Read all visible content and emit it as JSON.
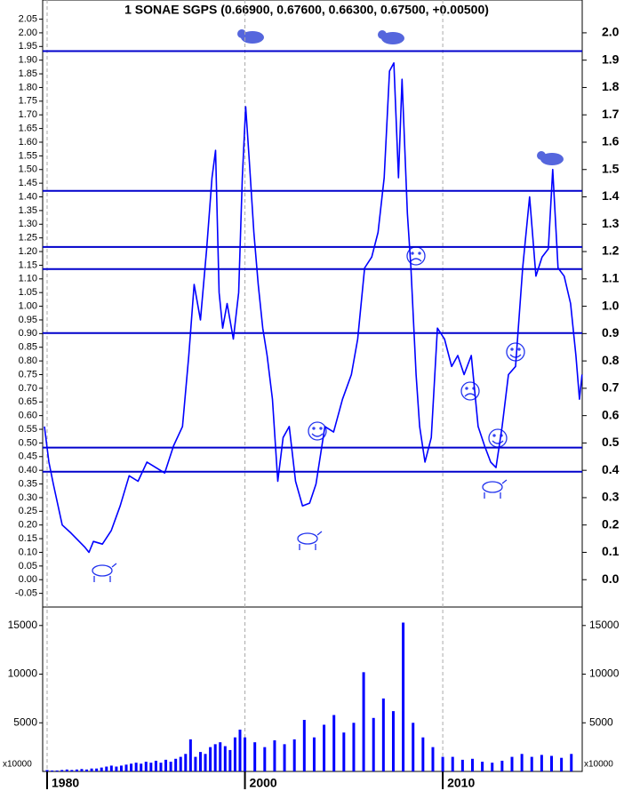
{
  "chart_data": [
    {
      "type": "line",
      "title": "1 SONAE SGPS (0.66900, 0.67600, 0.66300, 0.67500, +0.00500)",
      "xlim": [
        1979.55,
        2017.05
      ],
      "xticks": [
        1980,
        2000,
        2010
      ],
      "ylim": [
        -0.1,
        2.12
      ],
      "yticks": [
        -0.05,
        {
          "value": 0,
          "label": "0.00"
        },
        0.05,
        {
          "value": 0.1,
          "label": "0.10"
        },
        0.15,
        {
          "value": 0.2,
          "label": "0.20"
        },
        0.25,
        {
          "value": 0.3,
          "label": "0.30"
        },
        0.35,
        {
          "value": 0.4,
          "label": "0.40"
        },
        0.45,
        {
          "value": 0.5,
          "label": "0.50"
        },
        0.55,
        {
          "value": 0.6,
          "label": "0.60"
        },
        0.65,
        {
          "value": 0.7,
          "label": "0.70"
        },
        0.75,
        {
          "value": 0.8,
          "label": "0.80"
        },
        0.85,
        {
          "value": 0.9,
          "label": "0.90"
        },
        0.95,
        {
          "value": 1,
          "label": "1.00"
        },
        1.05,
        {
          "value": 1.1,
          "label": "1.10"
        },
        1.15,
        {
          "value": 1.2,
          "label": "1.20"
        },
        1.25,
        {
          "value": 1.3,
          "label": "1.30"
        },
        1.35,
        {
          "value": 1.4,
          "label": "1.40"
        },
        1.45,
        {
          "value": 1.5,
          "label": "1.50"
        },
        1.55,
        {
          "value": 1.6,
          "label": "1.60"
        },
        1.65,
        {
          "value": 1.7,
          "label": "1.70"
        },
        1.75,
        {
          "value": 1.8,
          "label": "1.80"
        },
        1.85,
        {
          "value": 1.9,
          "label": "1.90"
        },
        1.95,
        {
          "value": 2,
          "label": "2.00"
        },
        2.05
      ],
      "y2lim": [
        -0.1,
        2.12
      ],
      "y2ticks": [
        {
          "value": 0,
          "label": "0.0"
        },
        0.1,
        0.2,
        0.3,
        0.4,
        0.5,
        0.6,
        0.7,
        0.8,
        0.9,
        {
          "value": 1,
          "label": "1.0"
        },
        1.1,
        1.2,
        1.3,
        1.4,
        1.5,
        1.6,
        1.7,
        1.8,
        1.9,
        {
          "value": 2,
          "label": "2.0"
        }
      ],
      "hlines": [
        1.933,
        1.422,
        1.217,
        1.136,
        0.902,
        0.483,
        0.395
      ],
      "hline_color": "#0000cc",
      "color": "#0000ff",
      "x": [
        1979.73,
        1980.18,
        1980.63,
        1981.53,
        1982.43,
        1983.78,
        1984.23,
        1984.68,
        1985.59,
        1986.49,
        1987.39,
        1988.29,
        1989.19,
        1990.09,
        1990.99,
        1991.89,
        1992.79,
        1993.69,
        1994.32,
        1994.86,
        1995.5,
        1996.13,
        1996.67,
        1997.03,
        1997.39,
        1997.75,
        1998.2,
        1998.83,
        1999.37,
        1999.73,
        2000.04,
        2000.22,
        2000.45,
        2000.67,
        2000.9,
        2001.12,
        2001.39,
        2001.66,
        2001.93,
        2002.24,
        2002.56,
        2002.91,
        2003.27,
        2003.59,
        2004.04,
        2004.48,
        2004.93,
        2005.38,
        2005.7,
        2006.05,
        2006.41,
        2006.73,
        2007.04,
        2007.31,
        2007.53,
        2007.76,
        2007.94,
        2008.21,
        2008.39,
        2008.65,
        2008.83,
        2009.1,
        2009.42,
        2009.73,
        2010.09,
        2010.45,
        2010.76,
        2011.08,
        2011.44,
        2011.79,
        2012.11,
        2012.42,
        2012.69,
        2013.0,
        2013.32,
        2013.68,
        2014.04,
        2014.39,
        2014.71,
        2015.02,
        2015.34,
        2015.56,
        2015.83,
        2016.14,
        2016.46,
        2016.73,
        2016.91,
        2017.04
      ],
      "values": [
        0.56,
        0.43,
        0.35,
        0.2,
        0.17,
        0.12,
        0.1,
        0.14,
        0.13,
        0.18,
        0.27,
        0.38,
        0.36,
        0.43,
        0.41,
        0.39,
        0.49,
        0.56,
        0.82,
        1.08,
        0.95,
        1.21,
        1.47,
        1.57,
        1.05,
        0.92,
        1.01,
        0.88,
        1.05,
        1.47,
        1.73,
        1.53,
        1.27,
        1.08,
        0.92,
        0.82,
        0.66,
        0.36,
        0.52,
        0.56,
        0.36,
        0.27,
        0.28,
        0.35,
        0.56,
        0.54,
        0.66,
        0.75,
        0.88,
        1.14,
        1.18,
        1.27,
        1.47,
        1.86,
        1.89,
        1.47,
        1.83,
        1.34,
        1.14,
        0.75,
        0.56,
        0.43,
        0.52,
        0.92,
        0.88,
        0.78,
        0.82,
        0.75,
        0.82,
        0.56,
        0.49,
        0.43,
        0.41,
        0.56,
        0.75,
        0.78,
        1.14,
        1.4,
        1.11,
        1.18,
        1.21,
        1.5,
        1.14,
        1.11,
        1.01,
        0.82,
        0.66,
        0.75
      ]
    },
    {
      "type": "bar",
      "multiplier_label": "x10000",
      "xlim": [
        1979.55,
        2017.05
      ],
      "xticks": [
        1980,
        2000,
        2010
      ],
      "ylim": [
        0,
        16900
      ],
      "yticks": [
        5000,
        10000,
        15000
      ],
      "color": "#0000ff",
      "x": [
        1980,
        1980.5,
        1981,
        1981.5,
        1982,
        1982.5,
        1983,
        1983.5,
        1984,
        1984.5,
        1985,
        1985.5,
        1986,
        1986.5,
        1987,
        1987.5,
        1988,
        1988.5,
        1989,
        1989.5,
        1990,
        1990.5,
        1991,
        1991.5,
        1992,
        1992.5,
        1993,
        1993.5,
        1994,
        1994.5,
        1995,
        1995.5,
        1996,
        1996.5,
        1997,
        1997.5,
        1998,
        1998.5,
        1999,
        1999.5,
        2000,
        2000.5,
        2001,
        2001.5,
        2002,
        2002.5,
        2003,
        2003.5,
        2004,
        2004.5,
        2005,
        2005.5,
        2006,
        2006.5,
        2007,
        2007.5,
        2008,
        2008.5,
        2009,
        2009.5,
        2010,
        2010.5,
        2011,
        2011.5,
        2012,
        2012.5,
        2013,
        2013.5,
        2014,
        2014.5,
        2015,
        2015.5,
        2016,
        2016.5
      ],
      "values": [
        150,
        100,
        100,
        150,
        200,
        150,
        200,
        250,
        200,
        300,
        300,
        400,
        500,
        600,
        500,
        600,
        700,
        800,
        900,
        800,
        1000,
        900,
        1100,
        900,
        1200,
        1000,
        1300,
        1500,
        1800,
        3300,
        1500,
        2000,
        1800,
        2500,
        2800,
        3000,
        2600,
        2200,
        3500,
        4300,
        3500,
        3000,
        2500,
        3200,
        2800,
        3300,
        5300,
        3500,
        4800,
        5800,
        4000,
        5000,
        10200,
        5500,
        7500,
        6200,
        15300,
        5000,
        3500,
        2500,
        1500,
        1500,
        1200,
        1300,
        1000,
        900,
        1100,
        1500,
        1800,
        1500,
        1700,
        1600,
        1400,
        1800
      ]
    }
  ]
}
